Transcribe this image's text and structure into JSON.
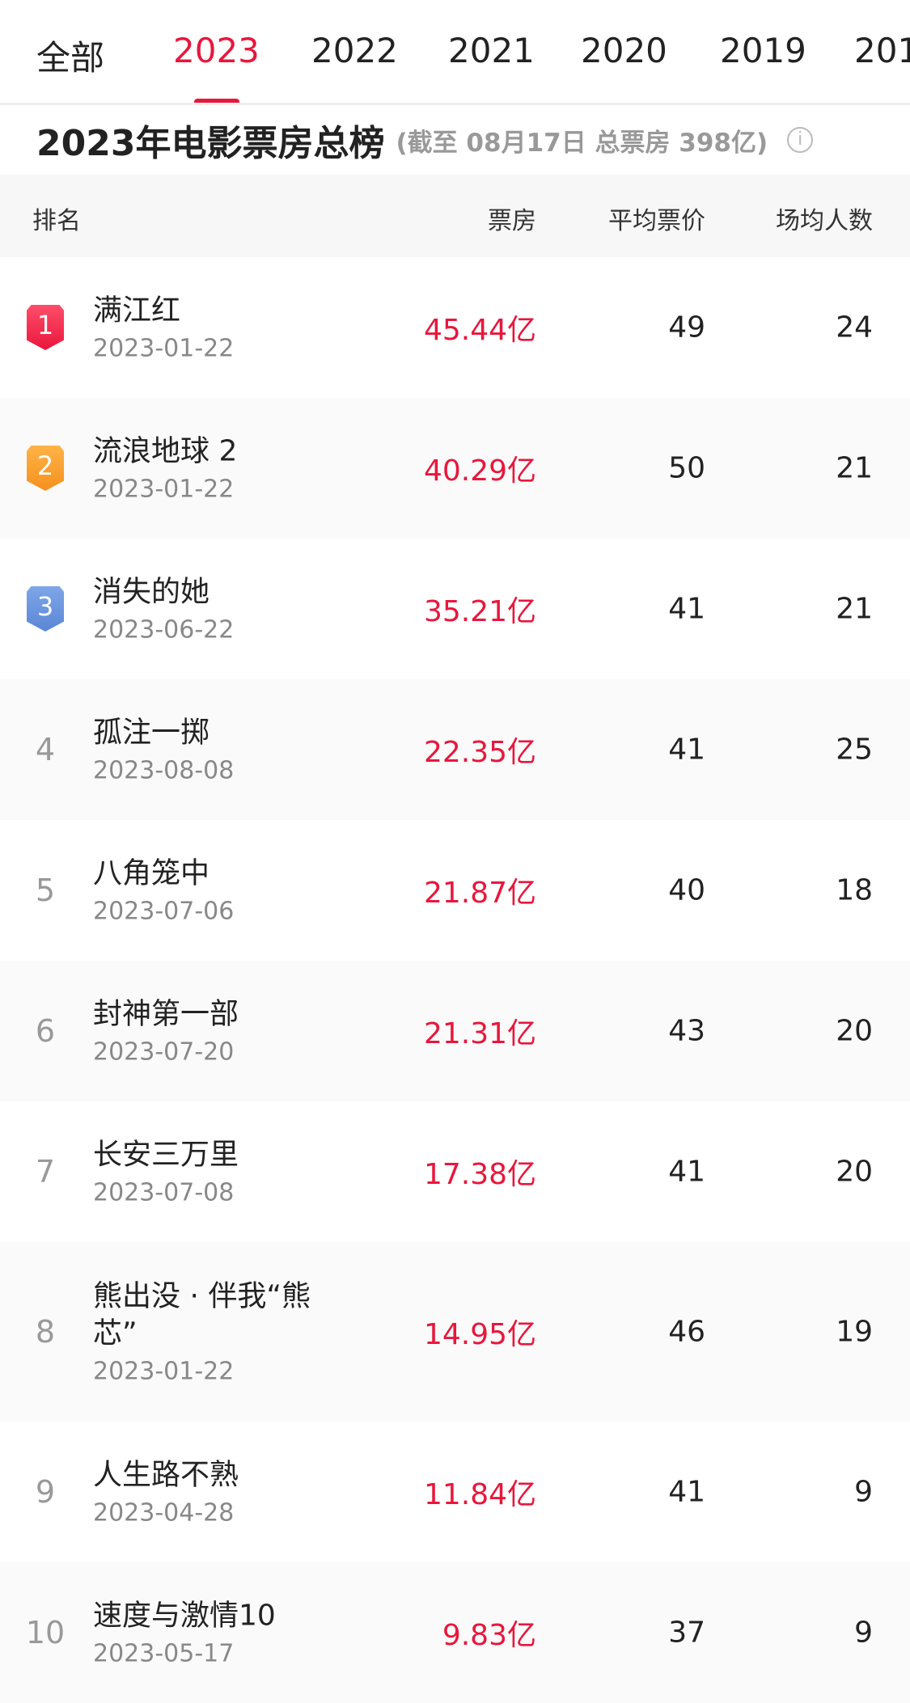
{
  "tabs": [
    "全部",
    "2023",
    "2022",
    "2021",
    "2020",
    "2019",
    "201"
  ],
  "active_tab": "2023",
  "colors": {
    "accent": "#e8173c",
    "rank1": "#e8173c",
    "rank2": "#f5901e",
    "rank3": "#5a86d6"
  },
  "title": "2023年电影票房总榜",
  "subtitle": "(截至 08月17日 总票房 398亿)",
  "info_icon": "ⓘ",
  "columns": {
    "rank": "排名",
    "box_office": "票房",
    "avg_price": "平均票价",
    "avg_audience": "场均人数"
  },
  "rows": [
    {
      "rank": "1",
      "name": "满江红",
      "date": "2023-01-22",
      "box_office": "45.44亿",
      "avg_price": "49",
      "avg_audience": "24"
    },
    {
      "rank": "2",
      "name": "流浪地球 2",
      "date": "2023-01-22",
      "box_office": "40.29亿",
      "avg_price": "50",
      "avg_audience": "21"
    },
    {
      "rank": "3",
      "name": "消失的她",
      "date": "2023-06-22",
      "box_office": "35.21亿",
      "avg_price": "41",
      "avg_audience": "21"
    },
    {
      "rank": "4",
      "name": "孤注一掷",
      "date": "2023-08-08",
      "box_office": "22.35亿",
      "avg_price": "41",
      "avg_audience": "25"
    },
    {
      "rank": "5",
      "name": "八角笼中",
      "date": "2023-07-06",
      "box_office": "21.87亿",
      "avg_price": "40",
      "avg_audience": "18"
    },
    {
      "rank": "6",
      "name": "封神第一部",
      "date": "2023-07-20",
      "box_office": "21.31亿",
      "avg_price": "43",
      "avg_audience": "20"
    },
    {
      "rank": "7",
      "name": "长安三万里",
      "date": "2023-07-08",
      "box_office": "17.38亿",
      "avg_price": "41",
      "avg_audience": "20"
    },
    {
      "rank": "8",
      "name": "熊出没 · 伴我“熊芯”",
      "date": "2023-01-22",
      "box_office": "14.95亿",
      "avg_price": "46",
      "avg_audience": "19"
    },
    {
      "rank": "9",
      "name": "人生路不熟",
      "date": "2023-04-28",
      "box_office": "11.84亿",
      "avg_price": "41",
      "avg_audience": "9"
    },
    {
      "rank": "10",
      "name": "速度与激情10",
      "date": "2023-05-17",
      "box_office": "9.83亿",
      "avg_price": "37",
      "avg_audience": "9"
    }
  ]
}
